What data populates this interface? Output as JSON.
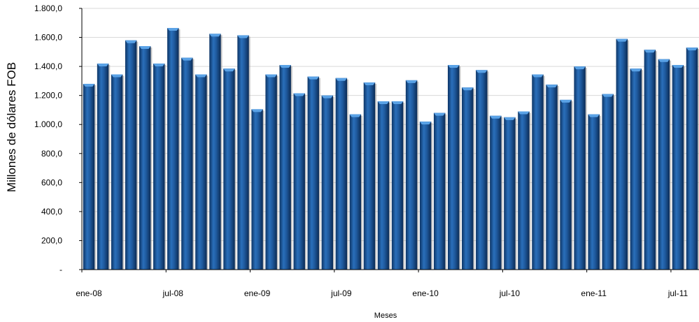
{
  "chart_data": {
    "type": "bar",
    "title": "",
    "xlabel": "Meses",
    "ylabel": "Millones de dólares FOB",
    "ylim": [
      0,
      1800
    ],
    "yticks": [
      {
        "value": 0,
        "label": "-"
      },
      {
        "value": 200,
        "label": "200,0"
      },
      {
        "value": 400,
        "label": "400,0"
      },
      {
        "value": 600,
        "label": "600,0"
      },
      {
        "value": 800,
        "label": "800,0"
      },
      {
        "value": 1000,
        "label": "1.000,0"
      },
      {
        "value": 1200,
        "label": "1.200,0"
      },
      {
        "value": 1400,
        "label": "1.400,0"
      },
      {
        "value": 1600,
        "label": "1.600,0"
      },
      {
        "value": 1800,
        "label": "1.800,0"
      }
    ],
    "grid": true,
    "legend": "none",
    "bar_color": "#1f5a9e",
    "x_tick_labels": [
      {
        "index": 0,
        "label": "ene-08"
      },
      {
        "index": 6,
        "label": "jul-08"
      },
      {
        "index": 12,
        "label": "ene-09"
      },
      {
        "index": 18,
        "label": "jul-09"
      },
      {
        "index": 24,
        "label": "ene-10"
      },
      {
        "index": 30,
        "label": "jul-10"
      },
      {
        "index": 36,
        "label": "ene-11"
      },
      {
        "index": 42,
        "label": "jul-11"
      }
    ],
    "values": [
      1280,
      1420,
      1345,
      1580,
      1540,
      1420,
      1665,
      1460,
      1345,
      1625,
      1385,
      1615,
      1105,
      1345,
      1410,
      1215,
      1330,
      1200,
      1320,
      1070,
      1290,
      1160,
      1160,
      1305,
      1020,
      1080,
      1410,
      1255,
      1375,
      1060,
      1050,
      1090,
      1345,
      1275,
      1170,
      1400,
      1070,
      1210,
      1590,
      1385,
      1515,
      1450,
      1410,
      1530
    ]
  }
}
